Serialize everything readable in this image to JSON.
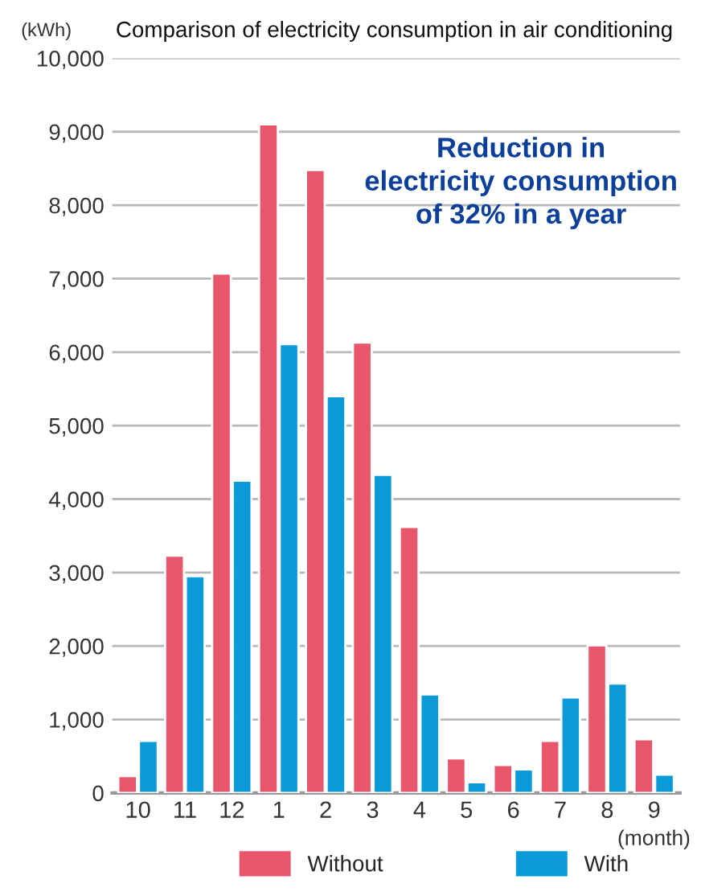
{
  "chart_data": {
    "type": "bar",
    "title": "Comparison of electricity consumption in air conditioning",
    "ylabel": "(kWh)",
    "xlabel": "(month)",
    "categories": [
      "10",
      "11",
      "12",
      "1",
      "2",
      "3",
      "4",
      "5",
      "6",
      "7",
      "8",
      "9"
    ],
    "series": [
      {
        "name": "Without",
        "color": "#e8566b",
        "values": [
          230,
          3230,
          7070,
          9100,
          8480,
          6130,
          3620,
          470,
          380,
          710,
          2010,
          730
        ]
      },
      {
        "name": "With",
        "color": "#0a9ad8",
        "values": [
          710,
          2950,
          4250,
          6110,
          5400,
          4330,
          1340,
          145,
          320,
          1300,
          1490,
          250
        ]
      }
    ],
    "ylim": [
      0,
      10000
    ],
    "yticks": [
      {
        "value": 0,
        "label": "0"
      },
      {
        "value": 1000,
        "label": "1,000"
      },
      {
        "value": 2000,
        "label": "2,000"
      },
      {
        "value": 3000,
        "label": "3,000"
      },
      {
        "value": 4000,
        "label": "4,000"
      },
      {
        "value": 5000,
        "label": "5,000"
      },
      {
        "value": 6000,
        "label": "6,000"
      },
      {
        "value": 7000,
        "label": "7,000"
      },
      {
        "value": 8000,
        "label": "8,000"
      },
      {
        "value": 9000,
        "label": "9,000"
      },
      {
        "value": 10000,
        "label": "10,000"
      }
    ],
    "grid": "y",
    "legend": "bottom",
    "annotations": [
      "Reduction in\nelectricity consumption\nof 32% in a year"
    ]
  }
}
